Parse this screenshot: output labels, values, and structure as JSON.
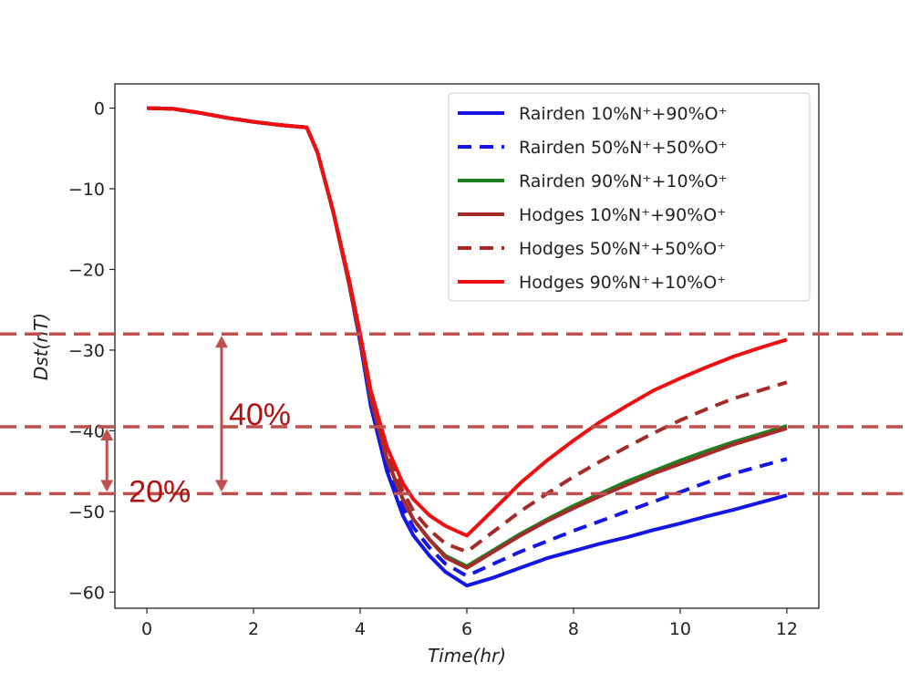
{
  "chart_data": {
    "type": "line",
    "xlabel": "Time(hr)",
    "ylabel": "Dst(nT)",
    "xlim": [
      -0.6,
      12.6
    ],
    "ylim": [
      -62,
      3
    ],
    "xticks": [
      0,
      2,
      4,
      6,
      8,
      10,
      12
    ],
    "yticks": [
      0,
      -10,
      -20,
      -30,
      -40,
      -50,
      -60
    ],
    "tick_labels_x": [
      "0",
      "2",
      "4",
      "6",
      "8",
      "10",
      "12"
    ],
    "tick_labels_y": [
      "0",
      "−10",
      "−20",
      "−30",
      "−40",
      "−50",
      "−60"
    ],
    "legend_position": "top-right",
    "series": [
      {
        "name": "Rairden 10%N⁺+90%O⁺",
        "color": "#1515e6",
        "dash": "solid",
        "x": [
          0,
          0.5,
          1,
          1.5,
          2,
          2.5,
          3,
          3.2,
          3.5,
          3.8,
          4,
          4.2,
          4.5,
          4.8,
          5,
          5.3,
          5.6,
          6,
          6.5,
          7,
          7.5,
          8,
          8.5,
          9,
          9.5,
          10,
          10.5,
          11,
          11.5,
          12
        ],
        "y": [
          0,
          -0.1,
          -0.6,
          -1.2,
          -1.7,
          -2.1,
          -2.4,
          -5.5,
          -13,
          -22,
          -29,
          -37,
          -45,
          -50.5,
          -53,
          -55.5,
          -57.5,
          -59.2,
          -58.2,
          -57,
          -55.8,
          -54.9,
          -54,
          -53.2,
          -52.3,
          -51.5,
          -50.6,
          -49.8,
          -48.9,
          -48
        ]
      },
      {
        "name": "Rairden 50%N⁺+50%O⁺",
        "color": "#1515e6",
        "dash": "dashed",
        "x": [
          0,
          0.5,
          1,
          1.5,
          2,
          2.5,
          3,
          3.2,
          3.5,
          3.8,
          4,
          4.2,
          4.5,
          4.8,
          5,
          5.3,
          5.6,
          6,
          6.5,
          7,
          7.5,
          8,
          8.5,
          9,
          9.5,
          10,
          10.5,
          11,
          11.5,
          12
        ],
        "y": [
          0,
          -0.1,
          -0.6,
          -1.2,
          -1.7,
          -2.1,
          -2.4,
          -5.5,
          -13,
          -22,
          -29,
          -36.5,
          -44.5,
          -49.5,
          -52,
          -54.5,
          -56.5,
          -58,
          -56.5,
          -55,
          -53.7,
          -52.4,
          -51.2,
          -50,
          -48.8,
          -47.6,
          -46.4,
          -45.3,
          -44.4,
          -43.5
        ]
      },
      {
        "name": "Rairden 90%N⁺+10%O⁺",
        "color": "#1f7f1f",
        "dash": "solid",
        "x": [
          0,
          0.5,
          1,
          1.5,
          2,
          2.5,
          3,
          3.2,
          3.5,
          3.8,
          4,
          4.2,
          4.5,
          4.8,
          5,
          5.3,
          5.6,
          6,
          6.5,
          7,
          7.5,
          8,
          8.5,
          9,
          9.5,
          10,
          10.5,
          11,
          11.5,
          12
        ],
        "y": [
          0,
          -0.1,
          -0.6,
          -1.2,
          -1.7,
          -2.1,
          -2.4,
          -5.5,
          -13,
          -22,
          -28.5,
          -36,
          -43.5,
          -48.5,
          -51,
          -53.5,
          -55.5,
          -56.8,
          -54.8,
          -52.8,
          -51,
          -49.3,
          -47.8,
          -46.3,
          -45,
          -43.7,
          -42.5,
          -41.4,
          -40.4,
          -39.4
        ]
      },
      {
        "name": "Hodges 10%N⁺+90%O⁺",
        "color": "#a52a2a",
        "dash": "solid",
        "x": [
          0,
          0.5,
          1,
          1.5,
          2,
          2.5,
          3,
          3.2,
          3.5,
          3.8,
          4,
          4.2,
          4.5,
          4.8,
          5,
          5.3,
          5.6,
          6,
          6.5,
          7,
          7.5,
          8,
          8.5,
          9,
          9.5,
          10,
          10.5,
          11,
          11.5,
          12
        ],
        "y": [
          0,
          -0.1,
          -0.6,
          -1.2,
          -1.7,
          -2.1,
          -2.4,
          -5.5,
          -13,
          -22,
          -28.5,
          -36,
          -43.5,
          -48.5,
          -51,
          -53.5,
          -55.7,
          -57,
          -55,
          -53,
          -51.2,
          -49.6,
          -48.1,
          -46.7,
          -45.3,
          -44.1,
          -42.9,
          -41.7,
          -40.7,
          -39.7
        ]
      },
      {
        "name": "Hodges 50%N⁺+50%O⁺",
        "color": "#a52a2a",
        "dash": "dashed",
        "x": [
          0,
          0.5,
          1,
          1.5,
          2,
          2.5,
          3,
          3.2,
          3.5,
          3.8,
          4,
          4.2,
          4.5,
          4.8,
          5,
          5.3,
          5.6,
          6,
          6.5,
          7,
          7.5,
          8,
          8.5,
          9,
          9.5,
          10,
          10.5,
          11,
          11.5,
          12
        ],
        "y": [
          0,
          -0.1,
          -0.6,
          -1.2,
          -1.7,
          -2.1,
          -2.4,
          -5.5,
          -13,
          -22,
          -28.5,
          -35.5,
          -43,
          -47.5,
          -50,
          -52.3,
          -54,
          -55,
          -52.5,
          -50,
          -47.8,
          -45.7,
          -43.8,
          -42,
          -40.3,
          -38.7,
          -37.3,
          -36,
          -35,
          -34
        ]
      },
      {
        "name": "Hodges 90%N⁺+10%O⁺",
        "color": "#ee1010",
        "dash": "solid",
        "x": [
          0,
          0.5,
          1,
          1.5,
          2,
          2.5,
          3,
          3.2,
          3.5,
          3.8,
          4,
          4.2,
          4.5,
          4.8,
          5,
          5.3,
          5.6,
          6,
          6.5,
          7,
          7.5,
          8,
          8.5,
          9,
          9.5,
          10,
          10.5,
          11,
          11.5,
          12
        ],
        "y": [
          0,
          -0.1,
          -0.6,
          -1.2,
          -1.7,
          -2.1,
          -2.4,
          -5.5,
          -13,
          -21.5,
          -28,
          -35,
          -42,
          -46.5,
          -48.5,
          -50.5,
          -51.8,
          -53,
          -49.8,
          -46.5,
          -43.7,
          -41.2,
          -38.9,
          -36.9,
          -35,
          -33.5,
          -32.1,
          -30.8,
          -29.7,
          -28.7
        ]
      }
    ],
    "reference_lines": {
      "color": "#bf5050",
      "y": [
        -28,
        -39.5,
        -47.8
      ]
    },
    "annotations": [
      {
        "text": "40%",
        "color": "#b01010",
        "x": 1.4,
        "y_from": -28,
        "y_to": -47.8,
        "arrow_color": "#c0504d"
      },
      {
        "text": "20%",
        "color": "#b01010",
        "x": -0.75,
        "y_from": -39.5,
        "y_to": -47.8,
        "arrow_color": "#c0504d"
      }
    ]
  }
}
